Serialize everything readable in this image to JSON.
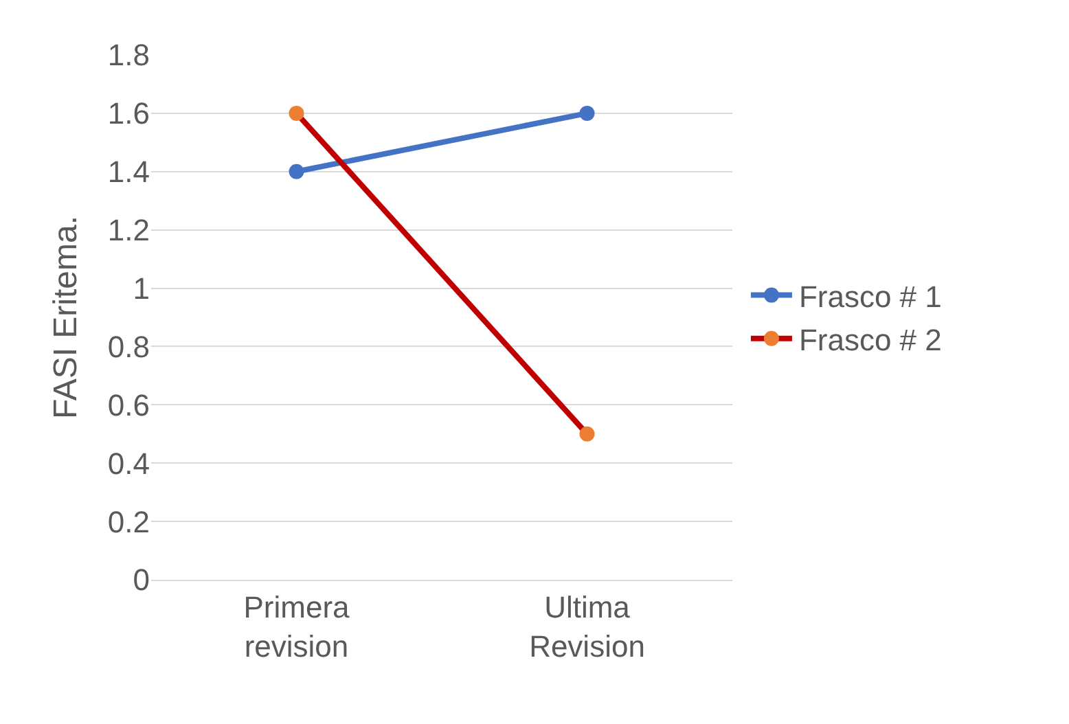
{
  "chart_data": {
    "type": "line",
    "ylabel": "FASI Eritema.",
    "categories": [
      "Primera revision",
      "Ultima Revision"
    ],
    "series": [
      {
        "name": "Frasco # 1",
        "color": "#4472c4",
        "values": [
          1.4,
          1.6
        ]
      },
      {
        "name": "Frasco # 2",
        "color": "#c00000",
        "colors": [
          "#ed7d31",
          "#ed7d31"
        ],
        "values": [
          1.6,
          0.5
        ]
      }
    ],
    "ylim": [
      0,
      1.8
    ],
    "yticks": [
      0,
      0.2,
      0.4,
      0.6,
      0.8,
      1,
      1.2,
      1.4,
      1.6,
      1.8
    ],
    "grid": "y",
    "legend": "right",
    "marker": "circle",
    "line_style": "solid"
  }
}
